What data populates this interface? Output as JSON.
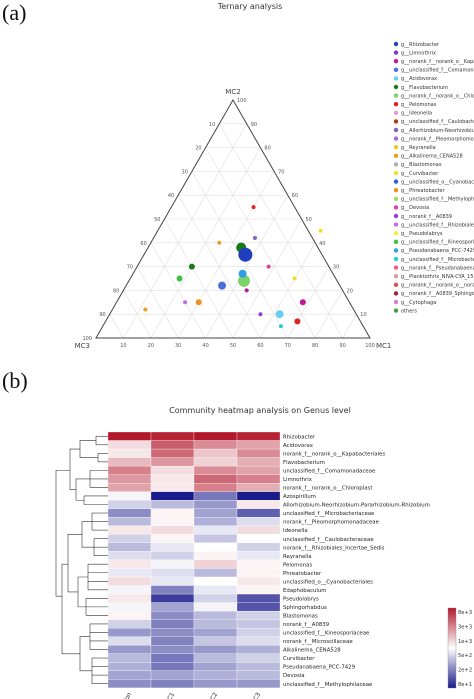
{
  "panels": {
    "a": {
      "label": "(a)",
      "title": "Ternary analysis"
    },
    "b": {
      "label": "(b)",
      "title": "Community heatmap analysis on Genus level"
    }
  },
  "ternary": {
    "vertices": {
      "top": "MC2",
      "right": "MC1",
      "left": "MC3"
    },
    "ticks": [
      "10",
      "20",
      "30",
      "40",
      "50",
      "60",
      "70",
      "80",
      "90",
      "100"
    ],
    "legend": [
      {
        "name": "g__Rhizobacter",
        "color": "#1f3fbf"
      },
      {
        "name": "g__Limnothrix",
        "color": "#7a3fbf"
      },
      {
        "name": "g__norank_f__norank_o__Kapa",
        "color": "#c01890"
      },
      {
        "name": "g__unclassified_f__Comamona",
        "color": "#4a6fd6"
      },
      {
        "name": "g__Acidovorax",
        "color": "#67d0e8"
      },
      {
        "name": "g__Flavobacterium",
        "color": "#1a7a1a"
      },
      {
        "name": "g__norank_f__norank_o__Chlo",
        "color": "#7bd36a"
      },
      {
        "name": "g__Pelomonas",
        "color": "#e02020"
      },
      {
        "name": "g__Ideonella",
        "color": "#e89ad0"
      },
      {
        "name": "g__unclassified_f__Caulobacte",
        "color": "#b03a1a"
      },
      {
        "name": "g__Allorhizobium-Neorhizobium",
        "color": "#8060c0"
      },
      {
        "name": "g__norank_f__Pleomorphomon",
        "color": "#a06cd6"
      },
      {
        "name": "g__Reyranella",
        "color": "#d8d020"
      },
      {
        "name": "g__Alkalinema_CENA528",
        "color": "#e8a020"
      },
      {
        "name": "g__Blastomonas",
        "color": "#b0b0b0"
      },
      {
        "name": "g__Curvibacter",
        "color": "#f0e020"
      },
      {
        "name": "g__unclassified_o__Cyanobact",
        "color": "#3060e0"
      },
      {
        "name": "g__Phreatobacter",
        "color": "#f09020"
      },
      {
        "name": "g__unclassified_f__Methyloph",
        "color": "#a0e060"
      },
      {
        "name": "g__Devosia",
        "color": "#e040a0"
      },
      {
        "name": "g__norank_f__A0839",
        "color": "#9040d0"
      },
      {
        "name": "g__unclassified_f__Rhizobiales_Ince",
        "color": "#c070e0"
      },
      {
        "name": "g__Pseudolabrys",
        "color": "#f0f040"
      },
      {
        "name": "g__unclassified_f__Kineosporia",
        "color": "#40c040"
      },
      {
        "name": "g__Pseudanabaena_PCC-7429",
        "color": "#30a0e0"
      },
      {
        "name": "g__unclassified_f__Microbacte",
        "color": "#20d0d0"
      },
      {
        "name": "g__norank_f__Pseudanabaena",
        "color": "#f06080"
      },
      {
        "name": "g__Planktothrix_NIVA-CYA_15",
        "color": "#d0a0a0"
      },
      {
        "name": "g__norank_f__norank_o__nora",
        "color": "#e05050"
      },
      {
        "name": "g__norank_f__A0839_Sphingomonada",
        "color": "#a02040"
      },
      {
        "name": "g__Cytophaga",
        "color": "#d080d0"
      },
      {
        "name": "others",
        "color": "#40a040"
      }
    ],
    "points": [
      {
        "mc1": 0.34,
        "mc2": 0.38,
        "mc3": 0.28,
        "r": 5,
        "color": "#1a7a1a"
      },
      {
        "mc1": 0.37,
        "mc2": 0.35,
        "mc3": 0.28,
        "r": 7,
        "color": "#1f3fbf"
      },
      {
        "mc1": 0.35,
        "mc2": 0.22,
        "mc3": 0.43,
        "r": 4,
        "color": "#4a6fd6"
      },
      {
        "mc1": 0.42,
        "mc2": 0.24,
        "mc3": 0.34,
        "r": 6,
        "color": "#7bd36a"
      },
      {
        "mc1": 0.4,
        "mc2": 0.27,
        "mc3": 0.33,
        "r": 4,
        "color": "#30a0e0"
      },
      {
        "mc1": 0.62,
        "mc2": 0.1,
        "mc3": 0.28,
        "r": 4,
        "color": "#67d0e8"
      },
      {
        "mc1": 0.7,
        "mc2": 0.07,
        "mc3": 0.23,
        "r": 3,
        "color": "#e02020"
      },
      {
        "mc1": 0.68,
        "mc2": 0.15,
        "mc3": 0.17,
        "r": 3,
        "color": "#c01890"
      },
      {
        "mc1": 0.3,
        "mc2": 0.15,
        "mc3": 0.55,
        "r": 3,
        "color": "#f09020"
      },
      {
        "mc1": 0.2,
        "mc2": 0.3,
        "mc3": 0.5,
        "r": 3,
        "color": "#1a7a1a"
      },
      {
        "mc1": 0.18,
        "mc2": 0.25,
        "mc3": 0.57,
        "r": 3,
        "color": "#40c040"
      },
      {
        "mc1": 0.52,
        "mc2": 0.55,
        "mc3": 0.0,
        "r": 2,
        "color": "#f0e020"
      },
      {
        "mc1": 0.3,
        "mc2": 0.55,
        "mc3": 0.15,
        "r": 2,
        "color": "#e02020"
      },
      {
        "mc1": 0.25,
        "mc2": 0.4,
        "mc3": 0.35,
        "r": 2,
        "color": "#e8a020"
      },
      {
        "mc1": 0.6,
        "mc2": 0.25,
        "mc3": 0.15,
        "r": 2,
        "color": "#f0e020"
      },
      {
        "mc1": 0.48,
        "mc2": 0.3,
        "mc3": 0.22,
        "r": 2,
        "color": "#e040a0"
      },
      {
        "mc1": 0.55,
        "mc2": 0.1,
        "mc3": 0.35,
        "r": 2,
        "color": "#9040d0"
      },
      {
        "mc1": 0.25,
        "mc2": 0.15,
        "mc3": 0.6,
        "r": 2,
        "color": "#c070e0"
      },
      {
        "mc1": 0.12,
        "mc2": 0.12,
        "mc3": 0.76,
        "r": 2,
        "color": "#e8a020"
      },
      {
        "mc1": 0.65,
        "mc2": 0.05,
        "mc3": 0.3,
        "r": 2,
        "color": "#20d0d0"
      },
      {
        "mc1": 0.45,
        "mc2": 0.2,
        "mc3": 0.35,
        "r": 2,
        "color": "#c01890"
      },
      {
        "mc1": 0.37,
        "mc2": 0.42,
        "mc3": 0.21,
        "r": 2,
        "color": "#8060c0"
      }
    ]
  },
  "heatmap": {
    "columns": [
      "Con",
      "MC1",
      "MC2",
      "MC3"
    ],
    "rows": [
      {
        "name": "Rhizobacter",
        "v": [
          1,
          0.95,
          1,
          0.95
        ]
      },
      {
        "name": "Acidovorax",
        "v": [
          0.15,
          0.7,
          0.5,
          0.4
        ]
      },
      {
        "name": "norank_f__norank_o__Kapabacteriales",
        "v": [
          0.1,
          0.65,
          0.25,
          0.5
        ]
      },
      {
        "name": "Flavobacterium",
        "v": [
          0.3,
          0.45,
          0.2,
          0.35
        ]
      },
      {
        "name": "unclassified_f__Comamonadaceae",
        "v": [
          0.55,
          0.15,
          0.5,
          0.4
        ]
      },
      {
        "name": "Limnothrix",
        "v": [
          0.45,
          0.1,
          0.65,
          0.55
        ]
      },
      {
        "name": "norank_f__norank_o__Chloroplast",
        "v": [
          0.4,
          0.1,
          0.55,
          0.35
        ]
      },
      {
        "name": "Azospirillum",
        "v": [
          -0.05,
          -1,
          -0.6,
          -1
        ]
      },
      {
        "name": "Allorhizobium-Neorhizobium-Pararhizobium-Rhizobium",
        "v": [
          -0.2,
          -0.3,
          -0.45,
          0.1
        ]
      },
      {
        "name": "unclassified_f__Microbacteriaceae",
        "v": [
          -0.5,
          0.05,
          -0.4,
          -0.7
        ]
      },
      {
        "name": "norank_f__Pleomorphomonadaceae",
        "v": [
          -0.3,
          0.05,
          -0.35,
          -0.15
        ]
      },
      {
        "name": "Ideonella",
        "v": [
          0.1,
          0.15,
          -0.1,
          0.15
        ]
      },
      {
        "name": "unclassified_f__Caulobacteraceae",
        "v": [
          -0.2,
          0.05,
          -0.25,
          0.0
        ]
      },
      {
        "name": "norank_f__Rhizobiales_Incertae_Sedis",
        "v": [
          -0.3,
          -0.1,
          0.0,
          -0.2
        ]
      },
      {
        "name": "Reyranella",
        "v": [
          -0.15,
          -0.2,
          0.05,
          -0.1
        ]
      },
      {
        "name": "Pelomonas",
        "v": [
          0.1,
          -0.05,
          0.2,
          0.05
        ]
      },
      {
        "name": "Phreatobacter",
        "v": [
          -0.1,
          -0.15,
          -0.3,
          0.05
        ]
      },
      {
        "name": "unclassified_o__Cyanobacteriales",
        "v": [
          0.15,
          -0.1,
          0.0,
          0.1
        ]
      },
      {
        "name": "Edaphobaculum",
        "v": [
          -0.05,
          -0.55,
          -0.1,
          0.05
        ]
      },
      {
        "name": "Pseudolabrys",
        "v": [
          0.1,
          -0.85,
          -0.2,
          -0.75
        ]
      },
      {
        "name": "Sphingorhabdus",
        "v": [
          -0.05,
          -0.4,
          -0.05,
          -0.75
        ]
      },
      {
        "name": "Blastomonas",
        "v": [
          0.05,
          -0.5,
          -0.3,
          -0.2
        ]
      },
      {
        "name": "norank_f__A0839",
        "v": [
          -0.2,
          -0.55,
          -0.3,
          -0.25
        ]
      },
      {
        "name": "unclassified_f__Kineosporiaceae",
        "v": [
          -0.45,
          -0.5,
          -0.4,
          -0.2
        ]
      },
      {
        "name": "norank_f__Microscillaceae",
        "v": [
          -0.15,
          -0.55,
          -0.25,
          -0.15
        ]
      },
      {
        "name": "Alkalinema_CENA528",
        "v": [
          -0.45,
          -0.5,
          -0.45,
          -0.35
        ]
      },
      {
        "name": "Curvibacter",
        "v": [
          -0.3,
          -0.6,
          -0.3,
          -0.2
        ]
      },
      {
        "name": "Pseudanabaena_PCC-7429",
        "v": [
          -0.35,
          -0.6,
          -0.4,
          -0.3
        ]
      },
      {
        "name": "Devosia",
        "v": [
          -0.4,
          -0.4,
          -0.35,
          -0.3
        ]
      },
      {
        "name": "unclassified_f__Methylophilaceae",
        "v": [
          -0.5,
          -0.55,
          -0.45,
          -0.45
        ]
      }
    ],
    "colorbar_labels": [
      "8e+3",
      "3e+3",
      "1e+3",
      "5e+2",
      "2e+2",
      "8e+1"
    ],
    "colors": {
      "high": "#b2182b",
      "mid": "#ffffff",
      "low": "#1a1a8c"
    }
  }
}
